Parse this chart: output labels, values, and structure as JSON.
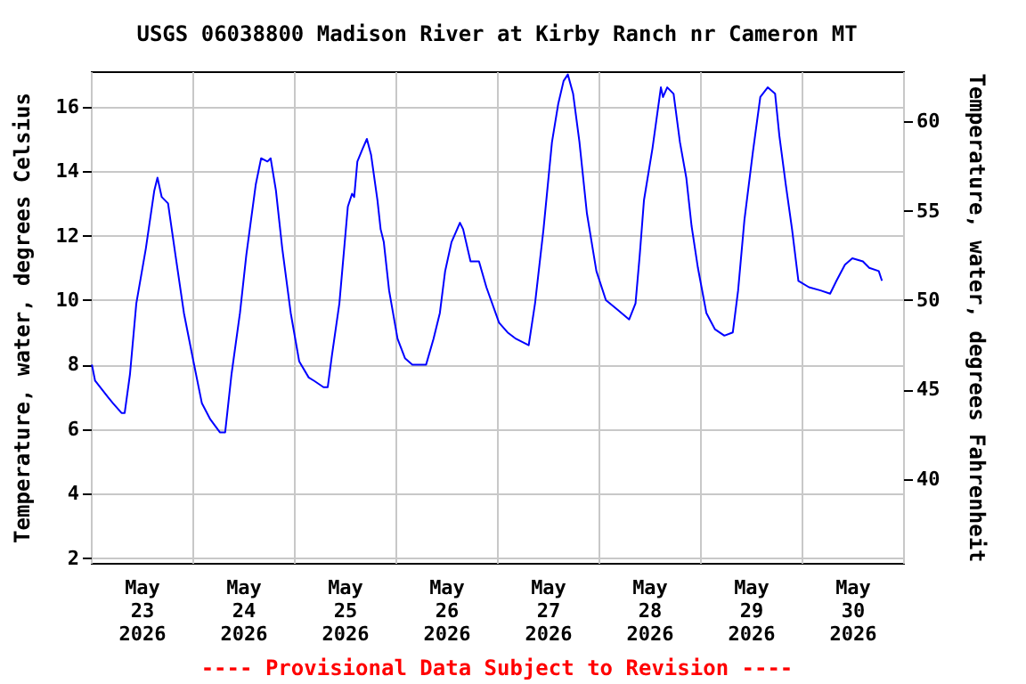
{
  "chart_data": {
    "type": "line",
    "title": "USGS 06038800 Madison River at Kirby Ranch nr Cameron MT",
    "ylabel": "Temperature, water, degrees Celsius",
    "y2label": "Temperature, water, degrees Fahrenheit",
    "annotations": [
      "---- Provisional Data Subject to Revision ----"
    ],
    "xlim": [
      "2026-05-23T00:00",
      "2026-05-31T00:00"
    ],
    "xticks": [
      {
        "value": "2026-05-23T00:00",
        "label": null
      },
      {
        "value": "2026-05-23T12:00",
        "label": "May 23 2026"
      },
      {
        "value": "2026-05-24T00:00",
        "label": null
      },
      {
        "value": "2026-05-24T12:00",
        "label": "May 24 2026"
      },
      {
        "value": "2026-05-25T00:00",
        "label": null
      },
      {
        "value": "2026-05-25T12:00",
        "label": "May 25 2026"
      },
      {
        "value": "2026-05-26T00:00",
        "label": null
      },
      {
        "value": "2026-05-26T12:00",
        "label": "May 26 2026"
      },
      {
        "value": "2026-05-27T00:00",
        "label": null
      },
      {
        "value": "2026-05-27T12:00",
        "label": "May 27 2026"
      },
      {
        "value": "2026-05-28T00:00",
        "label": null
      },
      {
        "value": "2026-05-28T12:00",
        "label": "May 28 2026"
      },
      {
        "value": "2026-05-29T00:00",
        "label": null
      },
      {
        "value": "2026-05-29T12:00",
        "label": "May 29 2026"
      },
      {
        "value": "2026-05-30T00:00",
        "label": null
      },
      {
        "value": "2026-05-30T12:00",
        "label": "May 30 2026"
      },
      {
        "value": "2026-05-31T00:00",
        "label": null
      }
    ],
    "ylim": [
      1.85,
      17.1
    ],
    "yticks": [
      2,
      4,
      6,
      8,
      10,
      12,
      14,
      16
    ],
    "y2lim": [
      35.3,
      62.8
    ],
    "y2ticks": [
      40,
      45,
      50,
      55,
      60
    ],
    "grid": true,
    "marker": "none",
    "line_style": "solid",
    "series": [
      {
        "color": "#0000ff",
        "x": [
          "2026-05-23T00:15",
          "2026-05-23T01:00",
          "2026-05-23T04:00",
          "2026-05-23T05:15",
          "2026-05-23T07:15",
          "2026-05-23T08:00",
          "2026-05-23T09:15",
          "2026-05-23T10:45",
          "2026-05-23T13:00",
          "2026-05-23T15:00",
          "2026-05-23T15:45",
          "2026-05-23T16:45",
          "2026-05-23T18:15",
          "2026-05-23T20:00",
          "2026-05-23T22:00",
          "2026-05-24T00:15",
          "2026-05-24T02:15",
          "2026-05-24T04:15",
          "2026-05-24T06:30",
          "2026-05-24T07:45",
          "2026-05-24T09:15",
          "2026-05-24T11:15",
          "2026-05-24T12:45",
          "2026-05-24T15:00",
          "2026-05-24T16:15",
          "2026-05-24T17:45",
          "2026-05-24T18:30",
          "2026-05-24T19:45",
          "2026-05-24T21:15",
          "2026-05-24T23:15",
          "2026-05-25T01:15",
          "2026-05-25T03:30",
          "2026-05-25T04:45",
          "2026-05-25T07:00",
          "2026-05-25T08:00",
          "2026-05-25T09:00",
          "2026-05-25T10:45",
          "2026-05-25T12:45",
          "2026-05-25T13:45",
          "2026-05-25T14:15",
          "2026-05-25T15:00",
          "2026-05-25T16:15",
          "2026-05-25T17:15",
          "2026-05-25T18:15",
          "2026-05-25T19:45",
          "2026-05-25T20:30",
          "2026-05-25T21:15",
          "2026-05-25T22:30",
          "2026-05-26T00:30",
          "2026-05-26T02:15",
          "2026-05-26T04:00",
          "2026-05-26T07:15",
          "2026-05-26T09:00",
          "2026-05-26T10:30",
          "2026-05-26T11:45",
          "2026-05-26T13:15",
          "2026-05-26T15:15",
          "2026-05-26T16:00",
          "2026-05-26T17:45",
          "2026-05-26T19:45",
          "2026-05-26T21:30",
          "2026-05-27T00:30",
          "2026-05-27T02:30",
          "2026-05-27T04:30",
          "2026-05-27T07:30",
          "2026-05-27T09:00",
          "2026-05-27T11:00",
          "2026-05-27T13:00",
          "2026-05-27T14:30",
          "2026-05-27T15:45",
          "2026-05-27T16:45",
          "2026-05-27T18:00",
          "2026-05-27T19:30",
          "2026-05-27T21:15",
          "2026-05-27T23:30",
          "2026-05-28T01:45",
          "2026-05-28T04:30",
          "2026-05-28T07:15",
          "2026-05-28T08:45",
          "2026-05-28T09:45",
          "2026-05-28T10:45",
          "2026-05-28T12:45",
          "2026-05-28T14:45",
          "2026-05-28T15:15",
          "2026-05-28T16:15",
          "2026-05-28T17:45",
          "2026-05-28T19:15",
          "2026-05-28T20:45",
          "2026-05-28T22:00",
          "2026-05-28T23:30",
          "2026-05-29T01:30",
          "2026-05-29T03:30",
          "2026-05-29T05:45",
          "2026-05-29T07:45",
          "2026-05-29T09:00",
          "2026-05-29T10:30",
          "2026-05-29T12:30",
          "2026-05-29T14:15",
          "2026-05-29T16:00",
          "2026-05-29T17:45",
          "2026-05-29T18:45",
          "2026-05-29T20:15",
          "2026-05-29T21:45",
          "2026-05-29T23:15",
          "2026-05-30T01:45",
          "2026-05-30T04:30",
          "2026-05-30T06:45",
          "2026-05-30T08:15",
          "2026-05-30T10:15",
          "2026-05-30T12:00",
          "2026-05-30T14:30",
          "2026-05-30T16:00",
          "2026-05-30T18:15",
          "2026-05-30T19:00"
        ],
        "values": [
          8.0,
          7.5,
          7.0,
          6.8,
          6.5,
          6.5,
          7.7,
          9.9,
          11.6,
          13.4,
          13.8,
          13.2,
          13.0,
          11.4,
          9.6,
          8.1,
          6.8,
          6.3,
          5.9,
          5.9,
          7.7,
          9.6,
          11.4,
          13.6,
          14.4,
          14.3,
          14.4,
          13.4,
          11.6,
          9.6,
          8.1,
          7.6,
          7.5,
          7.3,
          7.3,
          8.3,
          9.9,
          12.9,
          13.3,
          13.2,
          14.3,
          14.7,
          15.0,
          14.5,
          13.1,
          12.2,
          11.8,
          10.3,
          8.8,
          8.2,
          8.0,
          8.0,
          8.8,
          9.6,
          10.9,
          11.8,
          12.4,
          12.2,
          11.2,
          11.2,
          10.4,
          9.3,
          9.0,
          8.8,
          8.6,
          9.9,
          12.2,
          14.9,
          16.1,
          16.8,
          17.0,
          16.4,
          14.9,
          12.7,
          10.9,
          10.0,
          9.7,
          9.4,
          9.9,
          11.4,
          13.1,
          14.7,
          16.6,
          16.3,
          16.6,
          16.4,
          14.9,
          13.8,
          12.3,
          11.0,
          9.6,
          9.1,
          8.9,
          9.0,
          10.3,
          12.5,
          14.6,
          16.3,
          16.6,
          16.4,
          15.1,
          13.6,
          12.2,
          10.6,
          10.4,
          10.3,
          10.2,
          10.6,
          11.1,
          11.3,
          11.2,
          11.0,
          10.9,
          10.6
        ]
      }
    ]
  }
}
